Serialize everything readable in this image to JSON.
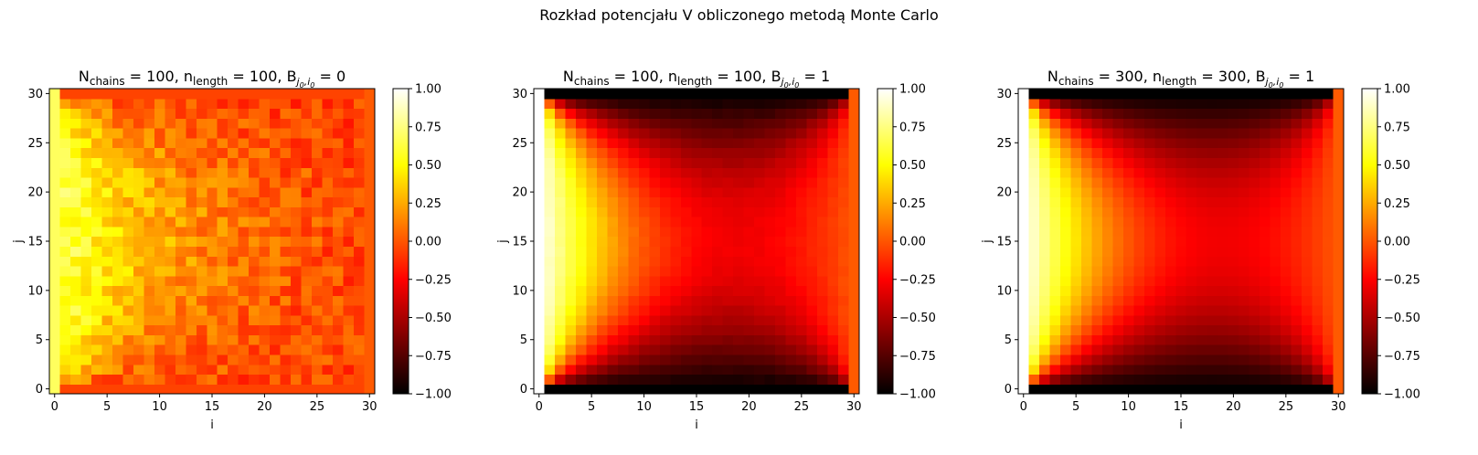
{
  "suptitle": "Rozkład potencjału V obliczonego metodą Monte Carlo",
  "colormap": "hot",
  "colors": {
    "black": "#000000",
    "red": "#e60000",
    "yellow": "#ffff00",
    "white": "#ffffff"
  },
  "chart_data": [
    {
      "type": "heatmap",
      "title": {
        "N": "100",
        "n": "100",
        "B": "0"
      },
      "xlabel": "i",
      "ylabel": "j",
      "xlim": [
        -0.5,
        30.5
      ],
      "ylim": [
        -0.5,
        30.5
      ],
      "xticks": [
        0,
        5,
        10,
        15,
        20,
        25,
        30
      ],
      "yticks": [
        0,
        5,
        10,
        15,
        20,
        25,
        30
      ],
      "grid_size": [
        31,
        31
      ],
      "value_range": [
        -1.0,
        1.0
      ],
      "boundary": {
        "left_column": 1.0,
        "right_column": 0.0,
        "bottom_row": 0.0,
        "top_row": 0.0
      },
      "noise": "high",
      "colorbar": {
        "ticks": [
          "1.00",
          "0.75",
          "0.50",
          "0.25",
          "0.00",
          "−0.25",
          "−0.50",
          "−0.75",
          "−1.00"
        ]
      }
    },
    {
      "type": "heatmap",
      "title": {
        "N": "100",
        "n": "100",
        "B": "1"
      },
      "xlabel": "i",
      "ylabel": "j",
      "xlim": [
        -0.5,
        30.5
      ],
      "ylim": [
        -0.5,
        30.5
      ],
      "xticks": [
        0,
        5,
        10,
        15,
        20,
        25,
        30
      ],
      "yticks": [
        0,
        5,
        10,
        15,
        20,
        25,
        30
      ],
      "grid_size": [
        31,
        31
      ],
      "value_range": [
        -1.0,
        1.0
      ],
      "boundary": {
        "left_column": 1.0,
        "right_column": 0.0,
        "bottom_row": -1.0,
        "top_row": -1.0
      },
      "noise": "low",
      "colorbar": {
        "ticks": [
          "1.00",
          "0.75",
          "0.50",
          "0.25",
          "0.00",
          "−0.25",
          "−0.50",
          "−0.75",
          "−1.00"
        ]
      }
    },
    {
      "type": "heatmap",
      "title": {
        "N": "300",
        "n": "300",
        "B": "1"
      },
      "xlabel": "i",
      "ylabel": "j",
      "xlim": [
        -0.5,
        30.5
      ],
      "ylim": [
        -0.5,
        30.5
      ],
      "xticks": [
        0,
        5,
        10,
        15,
        20,
        25,
        30
      ],
      "yticks": [
        0,
        5,
        10,
        15,
        20,
        25,
        30
      ],
      "grid_size": [
        31,
        31
      ],
      "value_range": [
        -1.0,
        1.0
      ],
      "boundary": {
        "left_column": 1.0,
        "right_column": 0.0,
        "bottom_row": -1.0,
        "top_row": -1.0
      },
      "noise": "none",
      "colorbar": {
        "ticks": [
          "1.00",
          "0.75",
          "0.50",
          "0.25",
          "0.00",
          "−0.25",
          "−0.50",
          "−0.75",
          "−1.00"
        ]
      }
    }
  ]
}
